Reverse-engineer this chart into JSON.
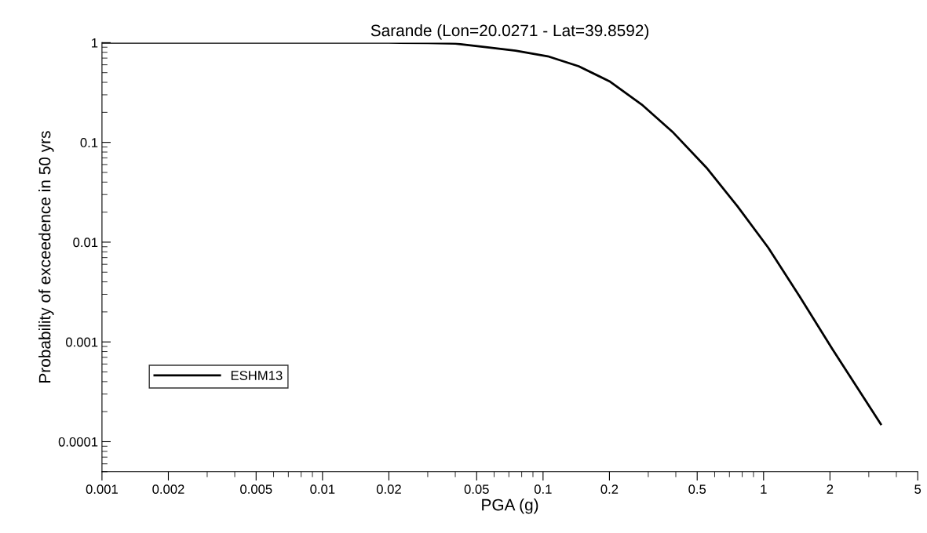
{
  "chart_data": {
    "type": "line",
    "title": "Sarande (Lon=20.0271 - Lat=39.8592)",
    "xlabel": "PGA (g)",
    "ylabel": "Probability of exceedence in 50 yrs",
    "log": "xy",
    "xlim": [
      0.001,
      5
    ],
    "ylim": [
      5e-05,
      1
    ],
    "xticks": [
      0.001,
      0.002,
      0.005,
      0.01,
      0.02,
      0.05,
      0.1,
      0.2,
      0.5,
      1,
      2,
      5
    ],
    "yticks": [
      0.0001,
      0.001,
      0.01,
      0.1,
      1
    ],
    "grid": false,
    "legend": "bottom left",
    "marker": "none",
    "line_style": "solid",
    "x": [
      0.001,
      0.005,
      0.02,
      0.03,
      0.04,
      0.055,
      0.075,
      0.105,
      0.145,
      0.2,
      0.28,
      0.39,
      0.55,
      0.76,
      1.05,
      1.45,
      2.05,
      3.4
    ],
    "series": [
      {
        "name": "ESHM13",
        "color": "#000000",
        "values": [
          1,
          1,
          1,
          0.99,
          0.98,
          0.9,
          0.83,
          0.73,
          0.58,
          0.41,
          0.24,
          0.125,
          0.056,
          0.023,
          0.0088,
          0.0029,
          0.00085,
          0.00015
        ]
      }
    ]
  }
}
